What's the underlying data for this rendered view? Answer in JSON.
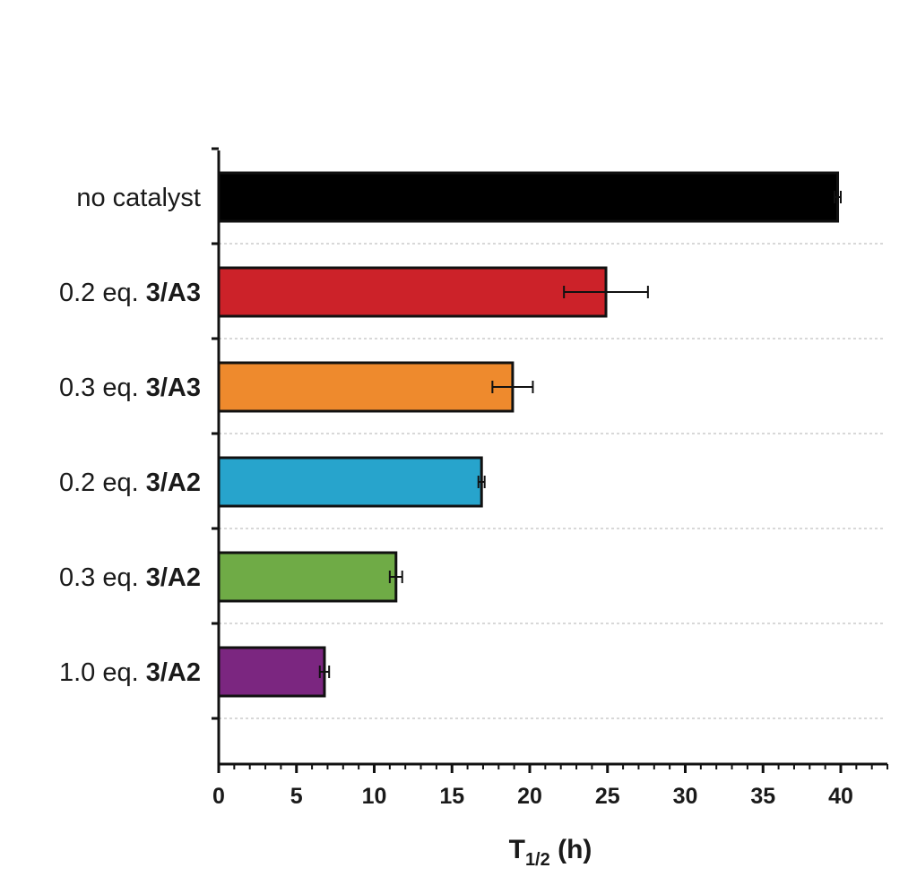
{
  "chart_data": {
    "type": "bar",
    "orientation": "horizontal",
    "categories": [
      {
        "prefix": "no catalyst",
        "bold": ""
      },
      {
        "prefix": "0.2 eq. ",
        "bold": "3/A3"
      },
      {
        "prefix": "0.3 eq. ",
        "bold": "3/A3"
      },
      {
        "prefix": "0.2 eq. ",
        "bold": "3/A2"
      },
      {
        "prefix": "0.3 eq. ",
        "bold": "3/A2"
      },
      {
        "prefix": "1.0 eq. ",
        "bold": "3/A2"
      }
    ],
    "values": [
      39.8,
      24.9,
      18.9,
      16.9,
      11.4,
      6.8
    ],
    "errors": [
      0.2,
      2.7,
      1.3,
      0.2,
      0.4,
      0.3
    ],
    "colors": [
      "#000000",
      "#cc2229",
      "#ee8a2d",
      "#27a4cc",
      "#6fab46",
      "#7b2680"
    ],
    "xlim": [
      0,
      43
    ],
    "xticks": [
      0,
      5,
      10,
      15,
      20,
      25,
      30,
      35,
      40
    ],
    "xlabel": {
      "main": "T",
      "sub": "1/2",
      "rest": " (h)"
    },
    "grid": "horizontal dashed separators"
  }
}
